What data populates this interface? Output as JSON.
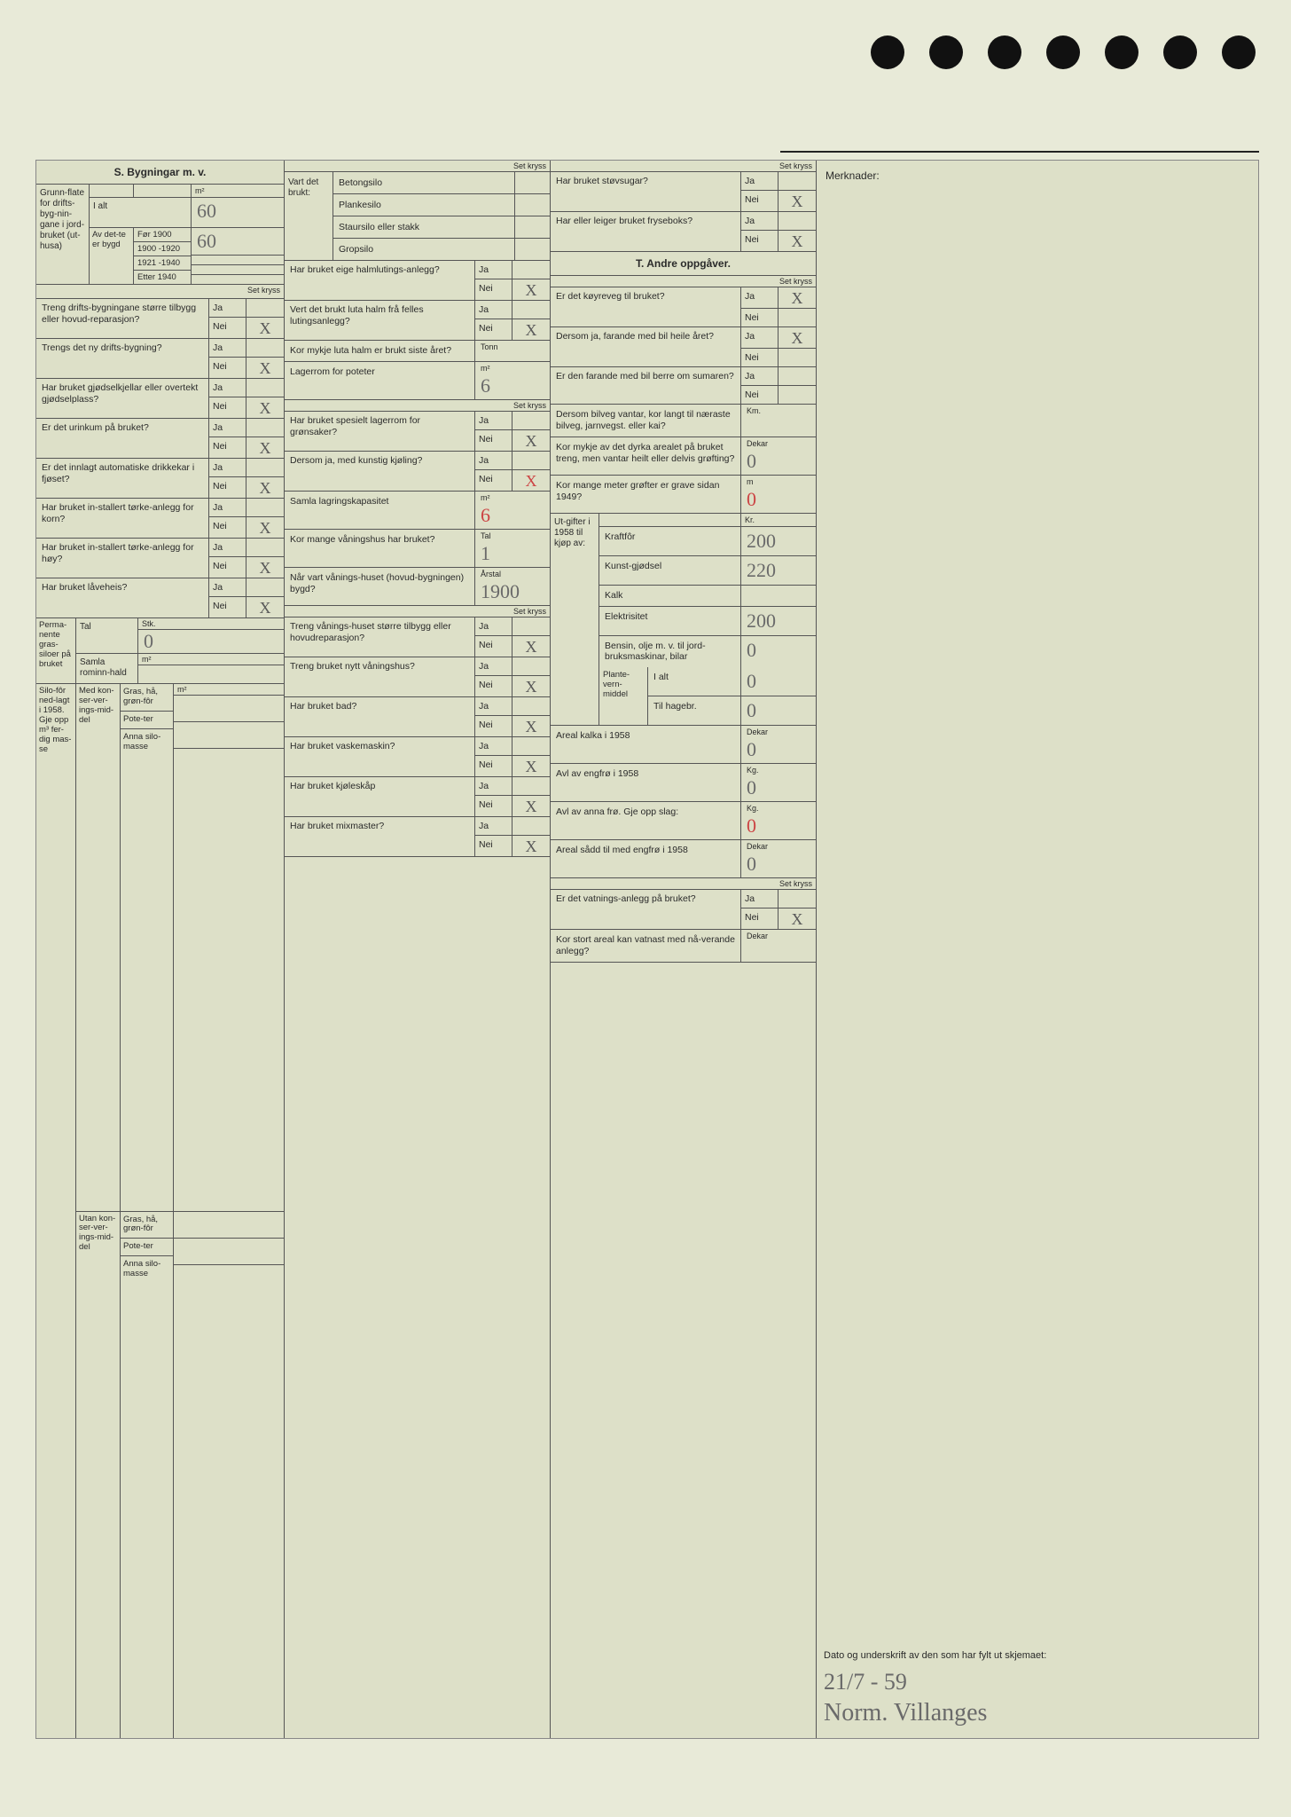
{
  "background_color": "#e8ead8",
  "form_background": "#dde0c8",
  "border_color": "#555555",
  "hand_color": "#6a6a6a",
  "hand_red_color": "#c44444",
  "hole_count": 7,
  "merknader_label": "Merknader:",
  "section_s_title": "S. Bygningar m. v.",
  "section_t_title": "T. Andre oppgåver.",
  "set_kryss": "Set kryss",
  "ja": "Ja",
  "nei": "Nei",
  "m2": "m²",
  "grunnflate": {
    "label": "Grunn-flate for drifts-byg-nin-gane i jord-bruket (ut-husa)",
    "ialt_label": "I alt",
    "ialt_value": "60",
    "av_dette_label": "Av det-te er bygd",
    "periods": [
      {
        "label": "Før 1900",
        "value": "60"
      },
      {
        "label": "1900 -1920",
        "value": ""
      },
      {
        "label": "1921 -1940",
        "value": ""
      },
      {
        "label": "Etter 1940",
        "value": ""
      }
    ]
  },
  "col1_questions": [
    {
      "label": "Treng drifts-bygningane større tilbygg eller hovud-reparasjon?",
      "ja": "",
      "nei": "X"
    },
    {
      "label": "Trengs det ny drifts-bygning?",
      "ja": "",
      "nei": "X"
    },
    {
      "label": "Har bruket gjødselkjellar eller overtekt gjødselplass?",
      "ja": "",
      "nei": "X"
    },
    {
      "label": "Er det urinkum på bruket?",
      "ja": "",
      "nei": "X"
    },
    {
      "label": "Er det innlagt automatiske drikkekar i fjøset?",
      "ja": "",
      "nei": "X"
    },
    {
      "label": "Har bruket in-stallert tørke-anlegg for korn?",
      "ja": "",
      "nei": "X"
    },
    {
      "label": "Har bruket in-stallert tørke-anlegg for høy?",
      "ja": "",
      "nei": "X"
    },
    {
      "label": "Har bruket låveheis?",
      "ja": "",
      "nei": "X"
    }
  ],
  "permanente": {
    "label": "Perma-nente gras-siloer på bruket",
    "tal_label": "Tal",
    "tal_unit": "Stk.",
    "tal_value": "0",
    "rom_label": "Samla rominn-hald",
    "rom_unit": "m²",
    "rom_value": ""
  },
  "silofor": {
    "main_label": "Silo-fôr ned-lagt i 1958. Gje opp m³ fer-dig mas-se",
    "med_label": "Med kon-ser-ver-ings-mid-del",
    "utan_label": "Utan kon-ser-ver-ings-mid-del",
    "items": [
      "Gras, hå, grøn-fôr",
      "Pote-ter",
      "Anna silo-masse"
    ],
    "unit": "m²"
  },
  "vart_brukt": {
    "label": "Vart det brukt:",
    "rows": [
      "Betongsilo",
      "Plankesilo",
      "Staursilo eller stakk",
      "Gropsilo"
    ]
  },
  "col2_questions": [
    {
      "label": "Har bruket eige halmlutings-anlegg?",
      "ja": "",
      "nei": "X"
    },
    {
      "label": "Vert det brukt luta halm frå felles lutingsanlegg?",
      "ja": "",
      "nei": "X"
    }
  ],
  "col2_values": [
    {
      "label": "Kor mykje luta halm er brukt siste året?",
      "unit": "Tonn",
      "value": ""
    },
    {
      "label": "Lagerrom for poteter",
      "unit": "m²",
      "value": "6"
    }
  ],
  "col2_questions2": [
    {
      "label": "Har bruket spesielt lagerrom for grønsaker?",
      "ja": "",
      "nei": "X"
    },
    {
      "label": "Dersom ja, med kunstig kjøling?",
      "ja": "",
      "nei": "X",
      "nei_red": true
    }
  ],
  "col2_values2": [
    {
      "label": "Samla lagringskapasitet",
      "unit": "m²",
      "value": "6",
      "red": true
    },
    {
      "label": "Kor mange våningshus har bruket?",
      "unit": "Tal",
      "value": "1"
    },
    {
      "label": "Når vart vånings-huset (hovud-bygningen) bygd?",
      "unit": "Årstal",
      "value": "1900"
    }
  ],
  "col2_questions3": [
    {
      "label": "Treng vånings-huset større tilbygg eller hovudreparasjon?",
      "ja": "",
      "nei": "X"
    },
    {
      "label": "Treng bruket nytt våningshus?",
      "ja": "",
      "nei": "X"
    },
    {
      "label": "Har bruket bad?",
      "ja": "",
      "nei": "X"
    },
    {
      "label": "Har bruket vaskemaskin?",
      "ja": "",
      "nei": "X"
    },
    {
      "label": "Har bruket kjøleskåp",
      "ja": "",
      "nei": "X"
    },
    {
      "label": "Har bruket mixmaster?",
      "ja": "",
      "nei": "X"
    }
  ],
  "col3_top": [
    {
      "label": "Har bruket støvsugar?",
      "ja": "",
      "nei": "X"
    },
    {
      "label": "Har eller leiger bruket fryseboks?",
      "ja": "",
      "nei": "X"
    }
  ],
  "col3_t_questions": [
    {
      "label": "Er det køyreveg til bruket?",
      "ja": "X",
      "nei": ""
    },
    {
      "label": "Dersom ja, farande med bil heile året?",
      "ja": "X",
      "nei": ""
    },
    {
      "label": "Er den farande med bil berre om sumaren?",
      "ja": "",
      "nei": ""
    }
  ],
  "col3_values": [
    {
      "label": "Dersom bilveg vantar, kor langt til næraste bilveg, jarnvegst. eller kai?",
      "unit": "Km.",
      "value": ""
    },
    {
      "label": "Kor mykje av det dyrka arealet på bruket treng, men vantar heilt eller delvis grøfting?",
      "unit": "Dekar",
      "value": "0"
    },
    {
      "label": "Kor mange meter grøfter er grave sidan 1949?",
      "unit": "m",
      "value": "0",
      "red": true
    }
  ],
  "utgifter": {
    "label": "Ut-gifter i 1958 til kjøp av:",
    "kr": "Kr.",
    "rows": [
      {
        "label": "Kraftfôr",
        "value": "200"
      },
      {
        "label": "Kunst-gjødsel",
        "value": "220"
      },
      {
        "label": "Kalk",
        "value": ""
      },
      {
        "label": "Elektrisitet",
        "value": "200"
      },
      {
        "label": "Bensin, olje m. v. til jord-bruksmaskinar, bilar",
        "value": "0"
      }
    ],
    "plante_label": "Plante-vern-middel",
    "plante_ialt": {
      "label": "I alt",
      "value": "0"
    },
    "plante_hagebr": {
      "label": "Til hagebr.",
      "value": "0"
    }
  },
  "col3_values2": [
    {
      "label": "Areal kalka i 1958",
      "unit": "Dekar",
      "value": "0"
    },
    {
      "label": "Avl av engfrø i 1958",
      "unit": "Kg.",
      "value": "0"
    },
    {
      "label": "Avl av anna frø. Gje opp slag:",
      "unit": "Kg.",
      "value": "0",
      "red": true
    },
    {
      "label": "Areal sådd til med engfrø i 1958",
      "unit": "Dekar",
      "value": "0"
    }
  ],
  "col3_q_bottom": [
    {
      "label": "Er det vatnings-anlegg på bruket?",
      "ja": "",
      "nei": "X"
    }
  ],
  "col3_val_bottom": {
    "label": "Kor stort areal kan vatnast med nå-verande anlegg?",
    "unit": "Dekar",
    "value": ""
  },
  "signature": {
    "label": "Dato og underskrift av den som har fylt ut skjemaet:",
    "date": "21/7 - 59",
    "name": "Norm. Villanges"
  }
}
